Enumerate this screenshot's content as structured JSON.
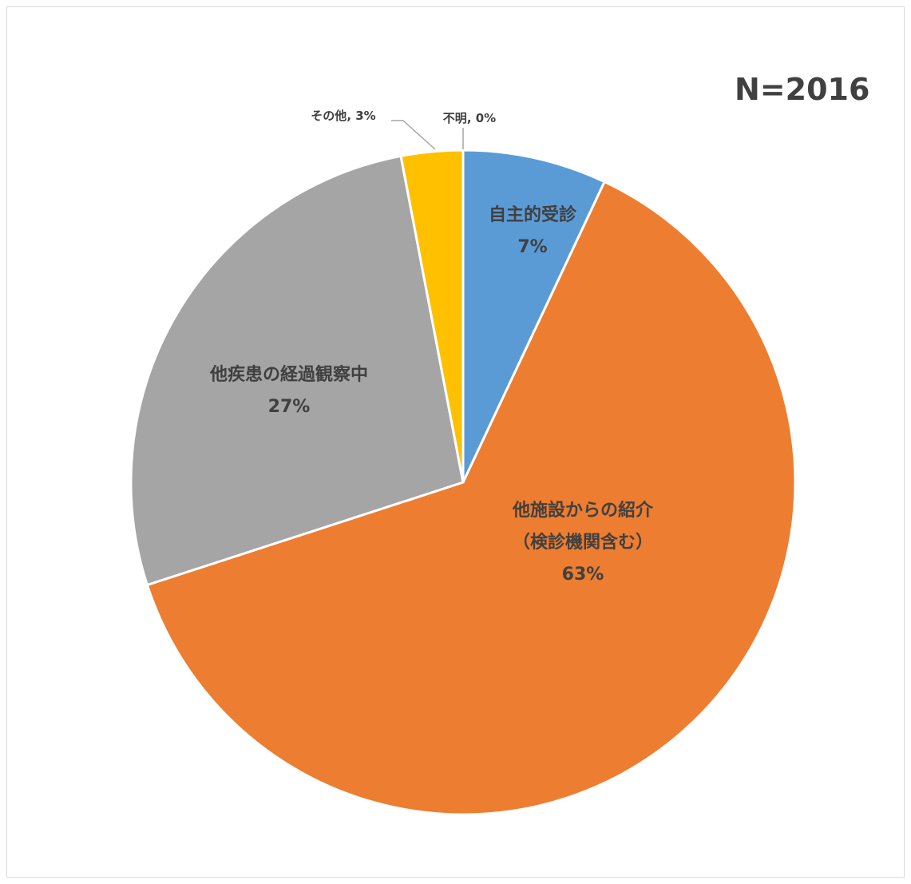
{
  "chart_data": {
    "type": "pie",
    "annotation": "N=2016",
    "categories": [
      "自主的受診",
      "他施設からの紹介（検診機関含む）",
      "他疾患の経過観察中",
      "その他",
      "不明"
    ],
    "values": [
      7,
      63,
      27,
      3,
      0
    ],
    "value_labels": [
      "7%",
      "63%",
      "27%",
      "3%",
      "0%"
    ],
    "colors": [
      "#5b9bd5",
      "#ed7d31",
      "#a5a5a5",
      "#ffc000",
      "#4472c4"
    ]
  }
}
